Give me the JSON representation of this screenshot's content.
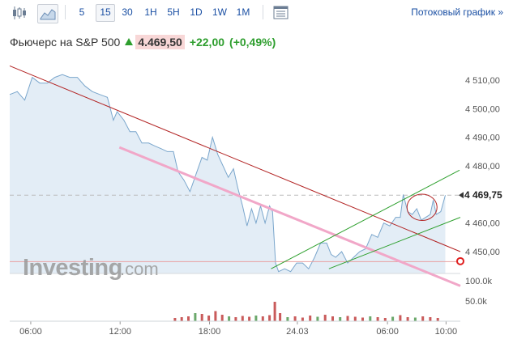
{
  "toolbar": {
    "intervals": [
      "5",
      "15",
      "30",
      "1H",
      "5H",
      "1D",
      "1W",
      "1M"
    ],
    "active_interval": "15",
    "stream_label": "Потоковый график »"
  },
  "header": {
    "title": "Фьючерс на S&P 500",
    "price": "4.469,50",
    "change": "+22,00",
    "change_pct": "(+0,49%)"
  },
  "watermark": {
    "brand": "Investing",
    "suffix": ".com"
  },
  "colors": {
    "price_line": "#7aa6cc",
    "area_fill": "#e3edf6",
    "resistance": "#b22222",
    "support": "#f1a7c8",
    "channel": "#2ea02e",
    "volume_up": "#6ba86b",
    "volume_down": "#c95b5b"
  },
  "chart_data": {
    "type": "line",
    "y_ticks": [
      "4 510,00",
      "4 500,00",
      "4 490,00",
      "4 480,00",
      "4 470,00",
      "4 460,00",
      "4 450,00"
    ],
    "x_ticks": [
      "06:00",
      "12:00",
      "18:00",
      "24.03",
      "06:00",
      "10:00"
    ],
    "volume_ticks": [
      "100.0k",
      "50.0k"
    ],
    "current_value_label": "4 469,75",
    "ylim": [
      4441.5,
      4514
    ],
    "x_range": [
      0,
      60
    ],
    "grid": false,
    "price": [
      [
        0,
        4505
      ],
      [
        1,
        4506
      ],
      [
        2,
        4503
      ],
      [
        3,
        4511
      ],
      [
        4,
        4509
      ],
      [
        5,
        4509
      ],
      [
        6,
        4511
      ],
      [
        7,
        4512
      ],
      [
        8,
        4511
      ],
      [
        9,
        4511
      ],
      [
        10,
        4508
      ],
      [
        11,
        4506
      ],
      [
        12,
        4505
      ],
      [
        13,
        4504
      ],
      [
        13.8,
        4496
      ],
      [
        14.3,
        4499
      ],
      [
        15.2,
        4496
      ],
      [
        16,
        4492
      ],
      [
        16.8,
        4492
      ],
      [
        17.6,
        4488
      ],
      [
        18.5,
        4488
      ],
      [
        19.3,
        4487
      ],
      [
        20.2,
        4486
      ],
      [
        21,
        4485
      ],
      [
        21.8,
        4485
      ],
      [
        22.4,
        4478
      ],
      [
        23.2,
        4475
      ],
      [
        24,
        4471
      ],
      [
        24.8,
        4477
      ],
      [
        25.6,
        4483
      ],
      [
        26.3,
        4482
      ],
      [
        27,
        4490
      ],
      [
        27.7,
        4484
      ],
      [
        28.4,
        4480
      ],
      [
        29.1,
        4476
      ],
      [
        29.8,
        4479
      ],
      [
        30.4,
        4472
      ],
      [
        31,
        4466
      ],
      [
        31.6,
        4459
      ],
      [
        32.2,
        4465
      ],
      [
        32.8,
        4460
      ],
      [
        33.4,
        4466
      ],
      [
        34,
        4460
      ],
      [
        34.6,
        4466
      ],
      [
        35,
        4464
      ],
      [
        35.4,
        4446
      ],
      [
        35.8,
        4443
      ],
      [
        36.6,
        4444
      ],
      [
        37.4,
        4443
      ],
      [
        38.2,
        4446
      ],
      [
        39,
        4446
      ],
      [
        39.8,
        4444
      ],
      [
        40.6,
        4448
      ],
      [
        41.4,
        4453
      ],
      [
        42.2,
        4453
      ],
      [
        42.8,
        4449
      ],
      [
        43.4,
        4448
      ],
      [
        44.2,
        4450
      ],
      [
        45,
        4446
      ],
      [
        45.8,
        4448
      ],
      [
        46.6,
        4450
      ],
      [
        47.4,
        4451
      ],
      [
        48.2,
        4456
      ],
      [
        49,
        4455
      ],
      [
        49.8,
        4460
      ],
      [
        50.6,
        4459
      ],
      [
        51.4,
        4462
      ],
      [
        52,
        4462
      ],
      [
        52.4,
        4470
      ],
      [
        53,
        4464
      ],
      [
        53.6,
        4463
      ],
      [
        54.2,
        4465
      ],
      [
        54.8,
        4461
      ],
      [
        55.4,
        4462
      ],
      [
        56,
        4463
      ],
      [
        56.4,
        4468
      ],
      [
        56.8,
        4463
      ],
      [
        57.4,
        4464
      ],
      [
        58,
        4469.75
      ]
    ],
    "volume": [
      {
        "x": 22.0,
        "v": 8000,
        "d": "down"
      },
      {
        "x": 22.9,
        "v": 10000,
        "d": "down"
      },
      {
        "x": 23.8,
        "v": 12000,
        "d": "down"
      },
      {
        "x": 24.7,
        "v": 20000,
        "d": "up"
      },
      {
        "x": 25.6,
        "v": 18000,
        "d": "down"
      },
      {
        "x": 26.5,
        "v": 14000,
        "d": "down"
      },
      {
        "x": 27.4,
        "v": 25000,
        "d": "down"
      },
      {
        "x": 28.3,
        "v": 16000,
        "d": "down"
      },
      {
        "x": 29.2,
        "v": 12000,
        "d": "up"
      },
      {
        "x": 30.1,
        "v": 10000,
        "d": "down"
      },
      {
        "x": 31.0,
        "v": 13000,
        "d": "down"
      },
      {
        "x": 31.9,
        "v": 11000,
        "d": "down"
      },
      {
        "x": 32.8,
        "v": 14000,
        "d": "up"
      },
      {
        "x": 33.7,
        "v": 12000,
        "d": "down"
      },
      {
        "x": 34.6,
        "v": 15000,
        "d": "down"
      },
      {
        "x": 35.3,
        "v": 48000,
        "d": "down"
      },
      {
        "x": 36.0,
        "v": 20000,
        "d": "down"
      },
      {
        "x": 37.0,
        "v": 10000,
        "d": "up"
      },
      {
        "x": 38.0,
        "v": 12000,
        "d": "down"
      },
      {
        "x": 39.0,
        "v": 9000,
        "d": "down"
      },
      {
        "x": 40.0,
        "v": 14000,
        "d": "down"
      },
      {
        "x": 41.0,
        "v": 11000,
        "d": "up"
      },
      {
        "x": 42.0,
        "v": 16000,
        "d": "down"
      },
      {
        "x": 43.0,
        "v": 12000,
        "d": "down"
      },
      {
        "x": 44.0,
        "v": 10000,
        "d": "up"
      },
      {
        "x": 45.0,
        "v": 13000,
        "d": "down"
      },
      {
        "x": 46.0,
        "v": 11000,
        "d": "down"
      },
      {
        "x": 47.0,
        "v": 9000,
        "d": "down"
      },
      {
        "x": 48.0,
        "v": 12000,
        "d": "up"
      },
      {
        "x": 49.0,
        "v": 10000,
        "d": "down"
      },
      {
        "x": 50.0,
        "v": 8000,
        "d": "down"
      },
      {
        "x": 51.0,
        "v": 11000,
        "d": "up"
      },
      {
        "x": 52.0,
        "v": 15000,
        "d": "down"
      },
      {
        "x": 53.0,
        "v": 10000,
        "d": "down"
      },
      {
        "x": 54.0,
        "v": 9000,
        "d": "up"
      },
      {
        "x": 55.0,
        "v": 12000,
        "d": "down"
      },
      {
        "x": 56.0,
        "v": 10000,
        "d": "down"
      },
      {
        "x": 57.0,
        "v": 8000,
        "d": "down"
      }
    ],
    "drawings": {
      "resistance": [
        [
          0,
          4515
        ],
        [
          60,
          4450
        ]
      ],
      "support": [
        [
          14.6,
          4486.5
        ],
        [
          60,
          4438
        ]
      ],
      "channel_upper": [
        [
          34.8,
          4444
        ],
        [
          59.9,
          4478.5
        ]
      ],
      "channel_lower": [
        [
          42.5,
          4444
        ],
        [
          60,
          4462
        ]
      ],
      "reference_level": 4446.5,
      "current_level": 4469.75,
      "ellipse": {
        "cx": 54.9,
        "cy": 4465.5,
        "rx": 2.0,
        "ry": 4.6
      }
    }
  }
}
